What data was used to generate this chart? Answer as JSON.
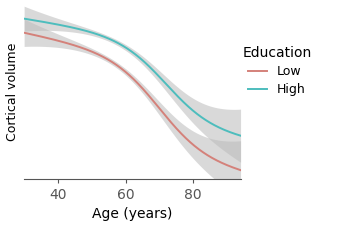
{
  "xlabel": "Age (years)",
  "ylabel": "Cortical volume",
  "legend_title": "Education",
  "legend_labels": [
    "Low",
    "High"
  ],
  "line_color_low": "#d4817a",
  "line_color_high": "#4dbdbd",
  "ci_color": "#bbbbbb",
  "ci_alpha": 0.55,
  "background_color": "#ffffff",
  "x_min": 30,
  "x_max": 94,
  "x_ticks": [
    40,
    60,
    80
  ],
  "ylabel_fontsize": 9,
  "xlabel_fontsize": 10,
  "legend_fontsize": 9,
  "legend_title_fontsize": 10
}
